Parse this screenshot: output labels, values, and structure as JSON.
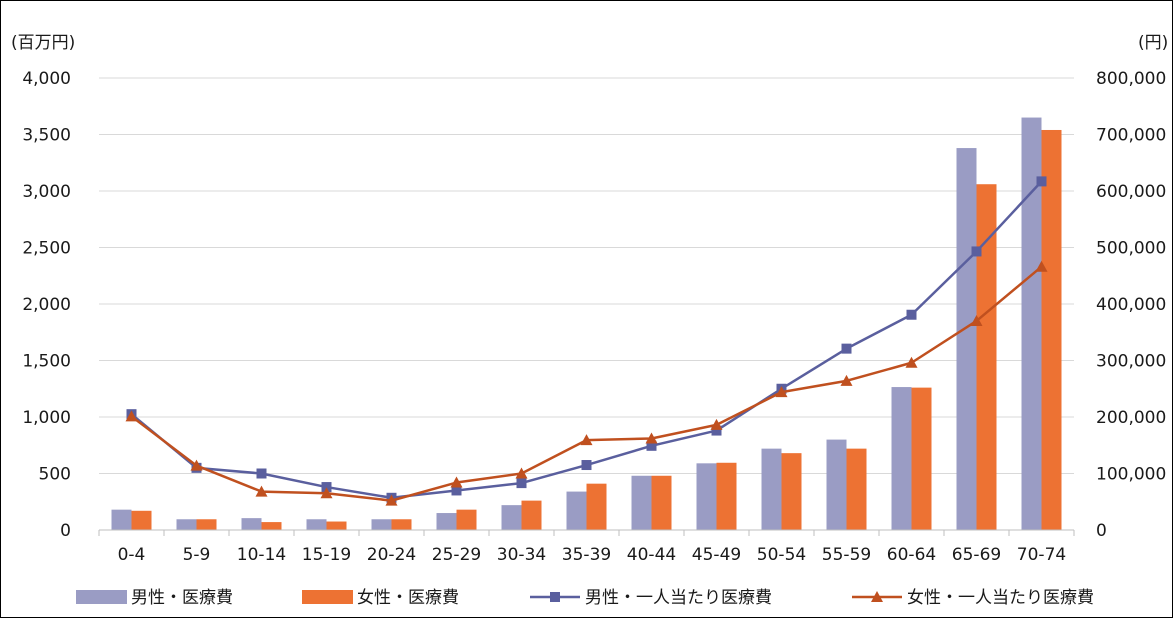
{
  "chart_data": {
    "type": "bar",
    "categories": [
      "0-4",
      "5-9",
      "10-14",
      "15-19",
      "20-24",
      "25-29",
      "30-34",
      "35-39",
      "40-44",
      "45-49",
      "50-54",
      "55-59",
      "60-64",
      "65-69",
      "70-74"
    ],
    "y_left_unit": "(百万円)",
    "y_right_unit": "(円)",
    "y_left_ticks": [
      "0",
      "500",
      "1,000",
      "1,500",
      "2,000",
      "2,500",
      "3,000",
      "3,500",
      "4,000"
    ],
    "y_right_ticks": [
      "0",
      "100,000",
      "200,000",
      "300,000",
      "400,000",
      "500,000",
      "600,000",
      "700,000",
      "800,000"
    ],
    "ylim_left": [
      0,
      4000
    ],
    "ylim_right": [
      0,
      800000
    ],
    "grid": true,
    "legend_position": "bottom",
    "series": [
      {
        "name": "男性・医療費",
        "type": "bar",
        "axis": "left",
        "color": "#9a9cc4",
        "values": [
          180,
          95,
          105,
          95,
          95,
          150,
          220,
          340,
          480,
          590,
          720,
          800,
          1265,
          3380,
          3650
        ]
      },
      {
        "name": "女性・医療費",
        "type": "bar",
        "axis": "left",
        "color": "#ed7233",
        "values": [
          170,
          95,
          70,
          75,
          95,
          180,
          260,
          410,
          480,
          595,
          680,
          720,
          1260,
          3060,
          3540
        ]
      },
      {
        "name": "男性・一人当たり医療費",
        "type": "line",
        "axis": "right",
        "color": "#5a5f9e",
        "marker": "square",
        "values": [
          205000,
          110000,
          100000,
          76000,
          57000,
          70000,
          83000,
          115000,
          149000,
          176000,
          250000,
          321000,
          381000,
          493000,
          617000
        ]
      },
      {
        "name": "女性・一人当たり医療費",
        "type": "line",
        "axis": "right",
        "color": "#c0501f",
        "marker": "triangle",
        "values": [
          201000,
          114000,
          68000,
          65000,
          52000,
          84000,
          100000,
          159000,
          162000,
          186000,
          244000,
          264000,
          296000,
          370000,
          466000
        ]
      }
    ]
  }
}
